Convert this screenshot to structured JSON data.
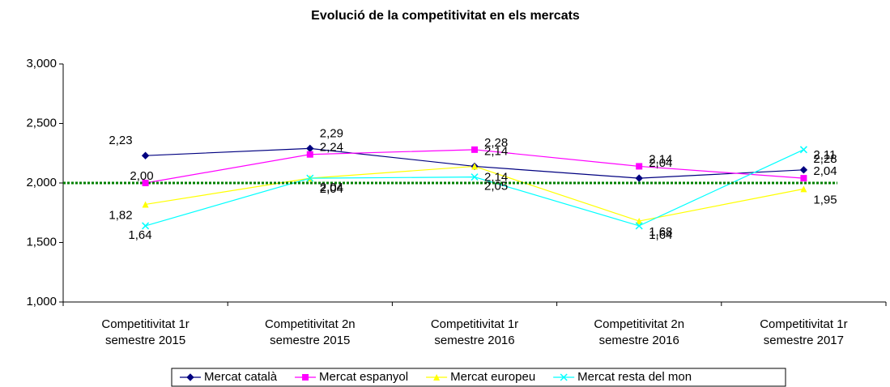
{
  "chart_data": {
    "type": "line",
    "title": "Evolució de la competitivitat en els mercats",
    "categories": [
      "Competitivitat 1r semestre 2015",
      "Competitivitat 2n semestre 2015",
      "Competitivitat 1r semestre 2016",
      "Competitivitat 2n semestre 2016",
      "Competitivitat 1r semestre 2017"
    ],
    "series": [
      {
        "name": "Mercat català",
        "color": "#000080",
        "marker": "diamond",
        "values": [
          2.23,
          2.29,
          2.14,
          2.04,
          2.11
        ],
        "value_labels": [
          "2,23",
          "2,29",
          "2,14",
          "2,04",
          "2,11"
        ]
      },
      {
        "name": "Mercat espanyol",
        "color": "#ff00ff",
        "marker": "square",
        "values": [
          2.0,
          2.24,
          2.28,
          2.14,
          2.04
        ],
        "value_labels": [
          "2,00",
          "2,24",
          "2,28",
          "2,14",
          "2,04"
        ]
      },
      {
        "name": "Mercat europeu",
        "color": "#ffff00",
        "marker": "triangle",
        "values": [
          1.82,
          2.04,
          2.14,
          1.68,
          1.95
        ],
        "value_labels": [
          "1,82",
          "2,04",
          "2,14",
          "1,68",
          "1,95"
        ]
      },
      {
        "name": "Mercat resta del mon",
        "color": "#00ffff",
        "marker": "x",
        "values": [
          1.64,
          2.04,
          2.05,
          1.64,
          2.28
        ],
        "value_labels": [
          "1,64",
          "2,04",
          "2,05",
          "1,64",
          "2,28"
        ]
      }
    ],
    "ylim": [
      1,
      3
    ],
    "yticks": [
      {
        "value": 1,
        "label": "1,000"
      },
      {
        "value": 1.5,
        "label": "1,500"
      },
      {
        "value": 2,
        "label": "2,000"
      },
      {
        "value": 2.5,
        "label": "2,500"
      },
      {
        "value": 3,
        "label": "3,000"
      }
    ],
    "reference_line": {
      "value": 2,
      "color": "#008000"
    },
    "legend": "bottom"
  }
}
